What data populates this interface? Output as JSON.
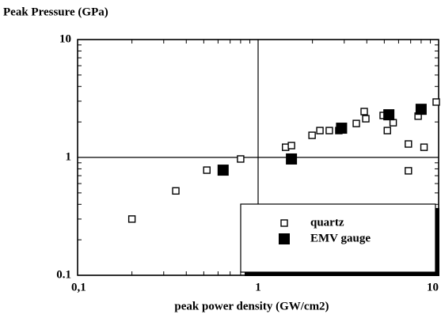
{
  "chart_data": {
    "type": "scatter",
    "title": "Peak Pressure (GPa)",
    "x_label": "peak power density (GW/cm2)",
    "xscale": "log",
    "yscale": "log",
    "xlim": [
      0.1,
      10
    ],
    "ylim": [
      0.1,
      10
    ],
    "xticks": [
      {
        "value": 0.1,
        "label": "0,1"
      },
      1,
      10
    ],
    "yticks": [
      0.1,
      1,
      10
    ],
    "grid": true,
    "legend": "lower right",
    "series": [
      {
        "name": "quartz",
        "color": "#000000",
        "filled": false,
        "x": [
          0.2,
          0.35,
          0.52,
          0.8,
          1.42,
          1.53,
          1.99,
          2.2,
          2.48,
          2.8,
          3.5,
          3.87,
          3.95,
          4.93,
          5.2,
          5.6,
          6.8,
          6.8,
          7.7,
          8.3,
          9.7
        ],
        "y": [
          0.3,
          0.52,
          0.78,
          0.97,
          1.22,
          1.26,
          1.54,
          1.69,
          1.69,
          1.69,
          1.94,
          2.45,
          2.13,
          2.27,
          1.69,
          1.97,
          1.3,
          0.77,
          2.24,
          1.22,
          2.95
        ]
      },
      {
        "name": "EMV gauge",
        "color": "#000000",
        "filled": true,
        "x": [
          0.64,
          1.53,
          2.9,
          5.3,
          8.0
        ],
        "y": [
          0.78,
          0.97,
          1.77,
          2.3,
          2.56
        ]
      }
    ]
  }
}
